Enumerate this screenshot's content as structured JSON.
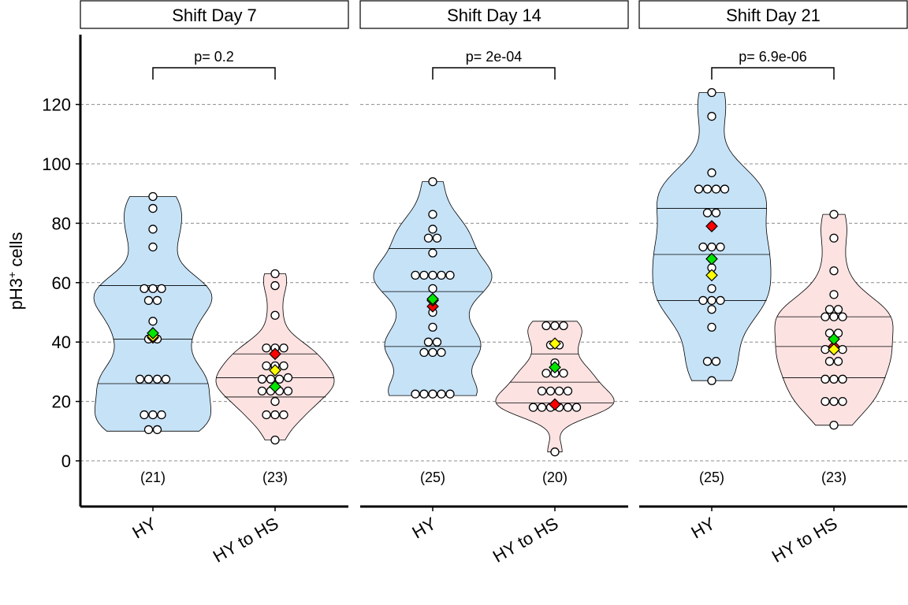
{
  "colors": {
    "hy_fill": "#c6e2f7",
    "hs_fill": "#fde2e2",
    "point_fill": "#ffffff",
    "mean_red": "#ff0000",
    "mean_yellow": "#ffff00",
    "mean_green": "#00e600",
    "grid": "#8c8c8c"
  },
  "chart_data": {
    "type": "violin",
    "title": "",
    "ylabel": "pH3",
    "ylabel_superscript": "+",
    "ylabel_suffix": " cells",
    "yticks": [
      0,
      20,
      40,
      60,
      80,
      100,
      120
    ],
    "ylim": [
      -15,
      140
    ],
    "grid": "horizontal dashed",
    "categories": [
      "HY",
      "HY to HS"
    ],
    "panels": [
      {
        "strip": "Shift Day 7",
        "p_label": "p= 0.2",
        "groups": [
          {
            "label": "HY",
            "n_label": "(21)",
            "points": [
              89,
              85,
              78,
              72,
              58,
              58,
              54,
              54,
              47,
              41,
              27.5,
              27.5,
              27.5,
              27.5,
              15.5,
              15.5,
              15.5,
              10.5,
              10.5,
              41,
              58
            ],
            "quartiles": [
              26,
              41,
              59
            ],
            "range": [
              10,
              89
            ],
            "markers": {
              "red": 41.5,
              "yellow": 42,
              "green": 43
            }
          },
          {
            "label": "HY to HS",
            "n_label": "(23)",
            "points": [
              63,
              59,
              49,
              38,
              38,
              38,
              32,
              32,
              32,
              27.5,
              27.5,
              27.5,
              23.5,
              23.5,
              23.5,
              23.5,
              15.5,
              15.5,
              15.5,
              7,
              36,
              28,
              20
            ],
            "quartiles": [
              21.5,
              28,
              36
            ],
            "range": [
              7,
              63
            ],
            "markers": {
              "red": 36,
              "yellow": 30.5,
              "green": 25
            }
          }
        ]
      },
      {
        "strip": "Shift Day 14",
        "p_label": "p= 2e-04",
        "groups": [
          {
            "label": "HY",
            "n_label": "(25)",
            "points": [
              94,
              83,
              78,
              75,
              75,
              62.5,
              62.5,
              62.5,
              62.5,
              62.5,
              54,
              40,
              40,
              36.5,
              36.5,
              36.5,
              22.5,
              22.5,
              22.5,
              22.5,
              22.5,
              58,
              45,
              50,
              70
            ],
            "quartiles": [
              38.5,
              57,
              71.5
            ],
            "range": [
              22,
              94
            ],
            "markers": {
              "red": 52,
              "yellow": 54,
              "green": 54.5
            }
          },
          {
            "label": "HY to HS",
            "n_label": "(20)",
            "points": [
              45.5,
              45.5,
              45.5,
              39,
              39,
              33,
              29.5,
              29.5,
              29.5,
              23.5,
              23.5,
              23.5,
              23.5,
              18,
              18,
              18,
              18,
              18,
              18,
              3
            ],
            "quartiles": [
              19.5,
              26.5,
              36
            ],
            "range": [
              3,
              47
            ],
            "markers": {
              "red": 19,
              "yellow": 39.5,
              "green": 31.5
            }
          }
        ]
      },
      {
        "strip": "Shift Day 21",
        "p_label": "p= 6.9e-06",
        "groups": [
          {
            "label": "HY",
            "n_label": "(25)",
            "points": [
              124,
              116,
              97,
              91.5,
              91.5,
              91.5,
              91.5,
              83.5,
              83.5,
              79,
              72,
              72,
              72,
              65,
              62.5,
              58,
              54,
              54,
              54,
              51,
              45,
              33.5,
              33.5,
              27,
              68
            ],
            "quartiles": [
              54,
              69.5,
              85
            ],
            "range": [
              27,
              124
            ],
            "markers": {
              "red": 79,
              "yellow": 62.5,
              "green": 68
            }
          },
          {
            "label": "HY to HS",
            "n_label": "(23)",
            "points": [
              83,
              75,
              64,
              56,
              51,
              51,
              48.5,
              48.5,
              48.5,
              43,
              43,
              37.5,
              37.5,
              37.5,
              33.5,
              33.5,
              27.5,
              27.5,
              27.5,
              20,
              20,
              20,
              12
            ],
            "quartiles": [
              28,
              38.5,
              48.5
            ],
            "range": [
              12,
              83
            ],
            "markers": {
              "red": 38.5,
              "yellow": 37.5,
              "green": 41
            }
          }
        ]
      }
    ]
  }
}
